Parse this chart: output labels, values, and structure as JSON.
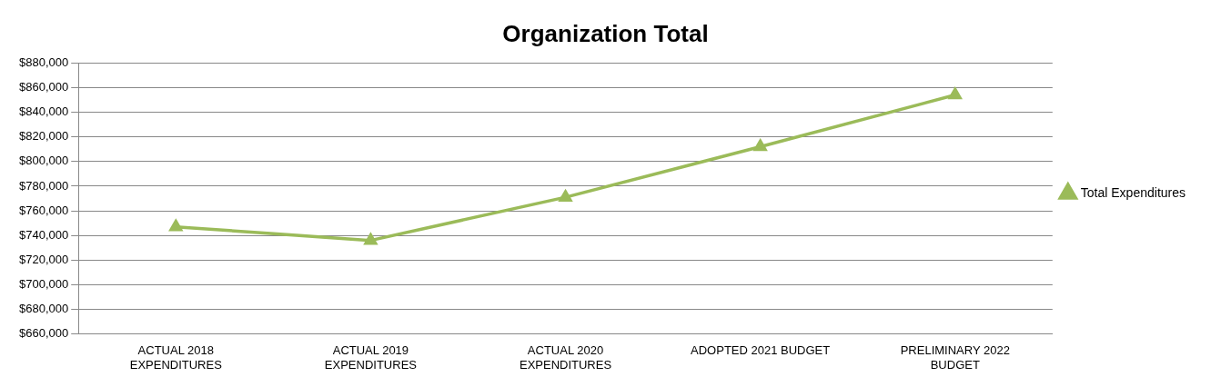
{
  "chart_data": {
    "type": "line",
    "title": "Organization Total",
    "categories": [
      "ACTUAL 2018 EXPENDITURES",
      "ACTUAL 2019 EXPENDITURES",
      "ACTUAL 2020 EXPENDITURES",
      "ADOPTED 2021 BUDGET",
      "PRELIMINARY 2022 BUDGET"
    ],
    "series": [
      {
        "name": "Total Expenditures",
        "color": "#9bbb59",
        "values": [
          747000,
          736000,
          771000,
          812000,
          854000
        ]
      }
    ],
    "ylim": [
      660000,
      880000
    ],
    "yticks": [
      {
        "value": 660000,
        "label": "$660,000"
      },
      {
        "value": 680000,
        "label": "$680,000"
      },
      {
        "value": 700000,
        "label": "$700,000"
      },
      {
        "value": 720000,
        "label": "$720,000"
      },
      {
        "value": 740000,
        "label": "$740,000"
      },
      {
        "value": 760000,
        "label": "$760,000"
      },
      {
        "value": 780000,
        "label": "$780,000"
      },
      {
        "value": 800000,
        "label": "$800,000"
      },
      {
        "value": 820000,
        "label": "$820,000"
      },
      {
        "value": 840000,
        "label": "$840,000"
      },
      {
        "value": 860000,
        "label": "$860,000"
      },
      {
        "value": 880000,
        "label": "$880,000"
      }
    ],
    "grid": "y",
    "legend": "right",
    "marker": "triangle",
    "line_style": "solid"
  }
}
